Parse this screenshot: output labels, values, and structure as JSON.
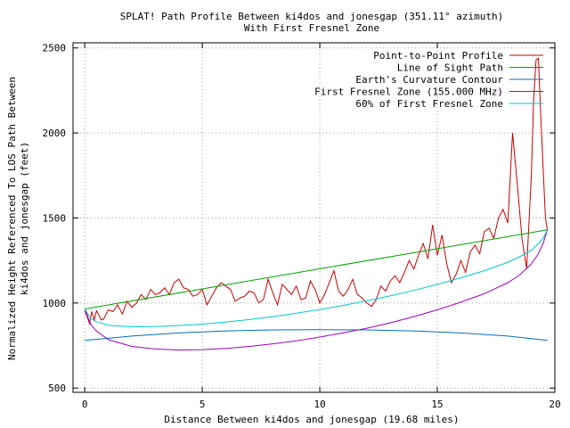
{
  "chart_data": {
    "type": "line",
    "title": "SPLAT! Path Profile Between ki4dos and jonesgap (351.11° azimuth)",
    "subtitle": "With First Fresnel Zone",
    "xlabel": "Distance Between ki4dos and jonesgap (19.68 miles)",
    "ylabel": "Normalized Height Referenced To LOS Path Between",
    "ylabel2": "ki4dos and jonesgap (feet)",
    "xlim": [
      -0.5,
      20
    ],
    "ylim": [
      475,
      2530
    ],
    "grid": true,
    "legend_position": "top-right",
    "x_ticks": [
      0,
      5,
      10,
      15,
      20
    ],
    "x_tick_labels": [
      "0",
      "5",
      "10",
      "15",
      "20"
    ],
    "y_ticks": [
      500,
      1000,
      1500,
      2000,
      2500
    ],
    "y_tick_labels": [
      "500",
      "1000",
      "1500",
      "2000",
      "2500"
    ],
    "series": [
      {
        "name": "Point-to-Point Profile",
        "color": "#cc0000",
        "x": [
          0,
          0.1,
          0.2,
          0.3,
          0.4,
          0.5,
          0.6,
          0.7,
          0.8,
          1.0,
          1.2,
          1.4,
          1.6,
          1.8,
          2.0,
          2.2,
          2.4,
          2.6,
          2.8,
          3.0,
          3.2,
          3.4,
          3.6,
          3.8,
          4.0,
          4.2,
          4.4,
          4.6,
          4.8,
          5.0,
          5.2,
          5.4,
          5.6,
          5.8,
          6.0,
          6.2,
          6.4,
          6.6,
          6.8,
          7.0,
          7.2,
          7.4,
          7.6,
          7.8,
          8.0,
          8.2,
          8.4,
          8.6,
          8.8,
          9.0,
          9.2,
          9.4,
          9.6,
          9.8,
          10.0,
          10.2,
          10.4,
          10.6,
          10.8,
          11.0,
          11.2,
          11.4,
          11.6,
          11.8,
          12.0,
          12.2,
          12.4,
          12.6,
          12.8,
          13.0,
          13.2,
          13.4,
          13.6,
          13.8,
          14.0,
          14.2,
          14.4,
          14.6,
          14.8,
          15.0,
          15.2,
          15.4,
          15.6,
          15.8,
          16.0,
          16.2,
          16.4,
          16.6,
          16.8,
          17.0,
          17.2,
          17.4,
          17.6,
          17.8,
          18.0,
          18.2,
          18.4,
          18.6,
          18.8,
          19.0,
          19.1,
          19.2,
          19.3,
          19.4,
          19.5,
          19.6,
          19.68
        ],
        "values": [
          955,
          920,
          880,
          950,
          900,
          955,
          930,
          900,
          905,
          960,
          950,
          990,
          935,
          1010,
          975,
          1000,
          1050,
          1020,
          1080,
          1050,
          1060,
          1090,
          1050,
          1120,
          1140,
          1090,
          1080,
          1040,
          1050,
          1080,
          990,
          1040,
          1090,
          1120,
          1100,
          1080,
          1010,
          1030,
          1040,
          1070,
          1060,
          1000,
          1020,
          1140,
          1060,
          990,
          1110,
          1080,
          1050,
          1100,
          1020,
          1030,
          1130,
          1080,
          1000,
          1050,
          1120,
          1190,
          1070,
          1040,
          1080,
          1140,
          1050,
          1030,
          1000,
          980,
          1020,
          1100,
          1070,
          1130,
          1160,
          1120,
          1180,
          1250,
          1200,
          1280,
          1350,
          1260,
          1460,
          1280,
          1400,
          1230,
          1120,
          1170,
          1250,
          1180,
          1300,
          1340,
          1290,
          1420,
          1440,
          1380,
          1500,
          1550,
          1470,
          2000,
          1700,
          1380,
          1200,
          1750,
          2200,
          2430,
          2440,
          2100,
          1800,
          1500,
          1430
        ]
      },
      {
        "name": "Line of Sight Path",
        "color": "#00a000",
        "x": [
          0,
          19.68
        ],
        "values": [
          965,
          1430
        ]
      },
      {
        "name": "Earth's Curvature Contour",
        "color": "#0070c0",
        "x": [
          0,
          2,
          4,
          6,
          8,
          9.84,
          12,
          14,
          16,
          18,
          19.68
        ],
        "values": [
          780,
          806,
          824,
          836,
          842,
          843,
          842,
          836,
          824,
          806,
          780
        ]
      },
      {
        "name": "First Fresnel Zone (155.000 MHz)",
        "color": "#a000c0",
        "x": [
          0,
          0.25,
          0.5,
          1,
          2,
          3,
          4,
          5,
          6,
          7,
          8,
          9,
          10,
          11,
          12,
          13,
          14,
          15,
          16,
          17,
          18,
          18.5,
          19,
          19.3,
          19.5,
          19.68
        ],
        "values": [
          965,
          875,
          835,
          785,
          745,
          730,
          724,
          726,
          733,
          745,
          760,
          778,
          800,
          825,
          852,
          884,
          920,
          960,
          1005,
          1055,
          1120,
          1165,
          1230,
          1290,
          1350,
          1430
        ]
      },
      {
        "name": "60% of First Fresnel Zone",
        "color": "#00c8d0",
        "x": [
          0,
          0.25,
          0.5,
          1,
          2,
          3,
          4,
          5,
          6,
          7,
          8,
          9,
          10,
          11,
          12,
          13,
          14,
          15,
          16,
          17,
          18,
          18.5,
          19,
          19.3,
          19.5,
          19.68
        ],
        "values": [
          965,
          910,
          890,
          870,
          860,
          862,
          868,
          876,
          888,
          903,
          920,
          940,
          962,
          986,
          1013,
          1042,
          1074,
          1110,
          1148,
          1190,
          1240,
          1272,
          1310,
          1350,
          1380,
          1430
        ]
      }
    ]
  }
}
